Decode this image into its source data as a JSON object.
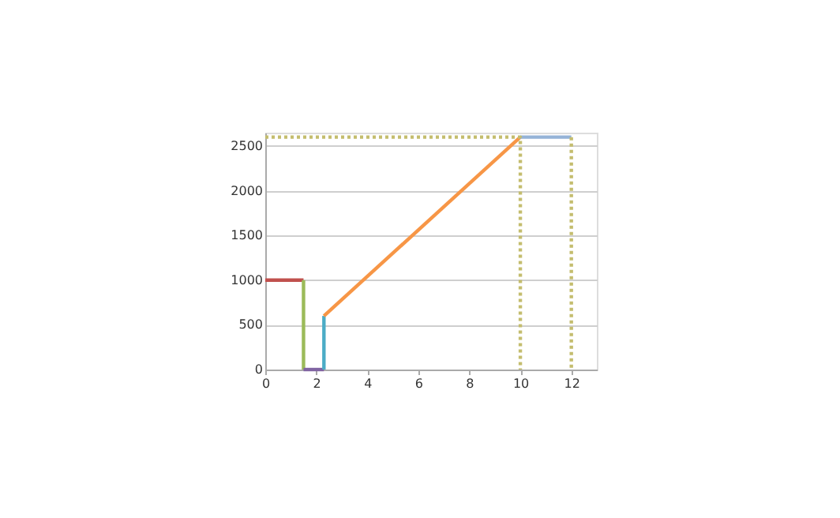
{
  "chart_data": {
    "type": "line",
    "xlim": [
      0,
      13
    ],
    "xticks": [
      0,
      2,
      4,
      6,
      8,
      10,
      12
    ],
    "ylim": [
      0,
      2650
    ],
    "yticks": [
      0,
      500,
      1000,
      1500,
      2000,
      2500
    ],
    "grid": "y",
    "legend": false,
    "marker": "none",
    "series": [
      {
        "color": "#c0504d",
        "x": [
          0,
          1.5
        ],
        "values": [
          1000,
          1000
        ],
        "line_style": "solid"
      },
      {
        "color": "#9bbb59",
        "x": [
          1.5,
          1.5
        ],
        "values": [
          1000,
          0
        ],
        "line_style": "solid"
      },
      {
        "color": "#8064a2",
        "x": [
          1.5,
          2.3
        ],
        "values": [
          0,
          0
        ],
        "line_style": "solid"
      },
      {
        "color": "#4bacc6",
        "x": [
          2.3,
          2.3
        ],
        "values": [
          0,
          600
        ],
        "line_style": "solid"
      },
      {
        "color": "#f79646",
        "x": [
          2.3,
          10
        ],
        "values": [
          600,
          2600
        ],
        "line_style": "solid"
      },
      {
        "color": "#95b3d7",
        "x": [
          10,
          12
        ],
        "values": [
          2600,
          2600
        ],
        "line_style": "solid"
      },
      {
        "color": "#c4bd6e",
        "x": [
          0,
          10,
          10
        ],
        "values": [
          2600,
          2600,
          0
        ],
        "line_style": "dotted"
      },
      {
        "color": "#c4bd6e",
        "x": [
          12,
          12
        ],
        "values": [
          2600,
          0
        ],
        "line_style": "dotted"
      }
    ]
  }
}
